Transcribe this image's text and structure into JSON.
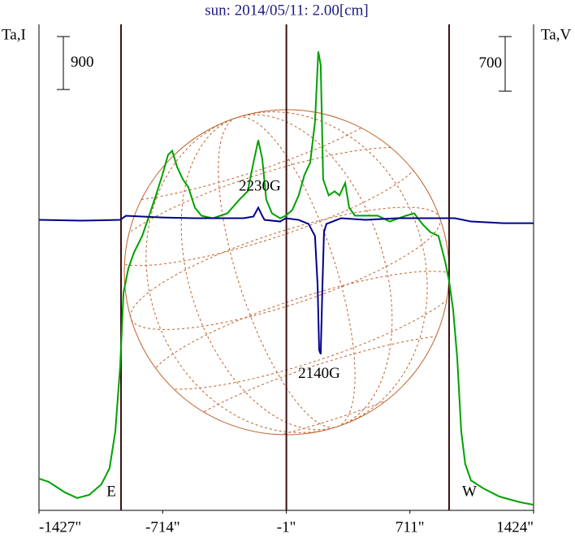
{
  "chart_data": {
    "type": "line",
    "title": "sun: 2014/05/11: 2.00[cm]",
    "y_label": "Ta,I",
    "y2_label": "Ta,V",
    "xlim": [
      -1427,
      1424
    ],
    "xticks": [
      {
        "value": -1427,
        "label": "-1427\""
      },
      {
        "value": -714,
        "label": "-714\""
      },
      {
        "value": -1,
        "label": "-1\""
      },
      {
        "value": 711,
        "label": "711\""
      },
      {
        "value": 1424,
        "label": "1424\""
      }
    ],
    "ylim": [
      0,
      8270
    ],
    "y2lim": [
      -3730,
      2510
    ],
    "vlines": [
      -954,
      -1,
      937
    ],
    "scale_bars": [
      {
        "value": 900,
        "axis": "y"
      },
      {
        "value": 700,
        "axis": "y2"
      }
    ],
    "series": [
      {
        "color": "#00a000",
        "x": [
          -1427,
          -1371,
          -1277,
          -1207,
          -1137,
          -1067,
          -1020,
          -987,
          -959,
          -940,
          -912,
          -879,
          -832,
          -800,
          -753,
          -716,
          -683,
          -659,
          -631,
          -598,
          -566,
          -528,
          -491,
          -425,
          -341,
          -271,
          -224,
          -191,
          -163,
          -140,
          -117,
          -84,
          -37,
          -5,
          33,
          70,
          103,
          136,
          164,
          183,
          197,
          211,
          243,
          277,
          305,
          338,
          361,
          394,
          455,
          525,
          595,
          689,
          736,
          782,
          829,
          876,
          913,
          937,
          960,
          984,
          1007,
          1030,
          1063,
          1134,
          1227,
          1344,
          1424
        ],
        "values": [
          540,
          485,
          305,
          210,
          265,
          445,
          720,
          1345,
          2450,
          3700,
          4115,
          4390,
          4670,
          4945,
          5360,
          5705,
          6050,
          6120,
          5845,
          5635,
          5500,
          5150,
          5015,
          4970,
          5055,
          5290,
          5430,
          5915,
          6300,
          5985,
          5290,
          5055,
          4970,
          5015,
          5110,
          5360,
          5705,
          5915,
          6605,
          7810,
          7575,
          5635,
          5360,
          5430,
          5360,
          5570,
          5150,
          5015,
          5015,
          5015,
          4915,
          5015,
          5055,
          4875,
          4735,
          4670,
          4250,
          3905,
          3420,
          2590,
          1345,
          790,
          510,
          375,
          235,
          140,
          95
        ]
      },
      {
        "color": "#00008b",
        "axis": "y2",
        "x": [
          -1427,
          -1184,
          -959,
          -926,
          -716,
          -528,
          -435,
          -247,
          -191,
          -163,
          -140,
          -127,
          -37,
          -5,
          70,
          127,
          164,
          179,
          188,
          197,
          207,
          216,
          230,
          314,
          455,
          642,
          736,
          876,
          970,
          1063,
          1251,
          1424
        ],
        "values": [
          0,
          -10,
          0,
          52,
          31,
          21,
          21,
          21,
          42,
          157,
          52,
          0,
          -21,
          21,
          0,
          -52,
          -209,
          -836,
          -1672,
          -1724,
          -836,
          -157,
          -52,
          21,
          0,
          21,
          21,
          21,
          21,
          -21,
          -42,
          -42
        ]
      }
    ],
    "annotations": [
      {
        "text": "2230G",
        "x": -154,
        "y": 5500
      },
      {
        "text": "2140G",
        "x": 188,
        "y": 2315
      },
      {
        "text": "E",
        "x": -1010,
        "y": 305
      },
      {
        "text": "W",
        "x": 1054,
        "y": 305
      }
    ]
  }
}
